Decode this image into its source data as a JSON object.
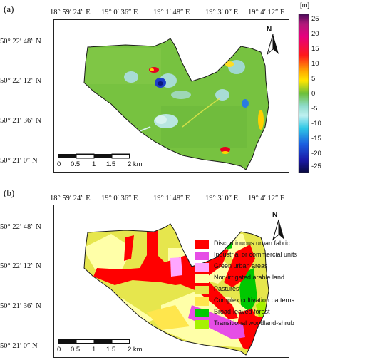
{
  "panel_a": {
    "label": "(a)",
    "top_coords": [
      "18° 59′ 24″ E",
      "19° 0′ 36″ E",
      "19° 1′ 48″ E",
      "19° 3′ 0″ E",
      "19° 4′ 12″ E"
    ],
    "left_coords": [
      "50° 22′ 48″ N",
      "50° 22′ 12″ N",
      "50° 21′ 36″ N",
      "50° 21′ 0″ N"
    ],
    "colorbar": {
      "unit": "[m]",
      "ticks": [
        "25",
        "20",
        "15",
        "10",
        "5",
        "0",
        "-5",
        "-10",
        "-15",
        "-20",
        "-25"
      ],
      "range": [
        -27,
        27
      ]
    },
    "scalebar": {
      "labels": [
        "0",
        "0.5",
        "1",
        "1.5",
        "2 km"
      ]
    },
    "north": "N"
  },
  "panel_b": {
    "label": "(b)",
    "top_coords": [
      "18° 59′ 24″ E",
      "19° 0′ 36″ E",
      "19° 1′ 48″ E",
      "19° 3′ 0″ E",
      "19° 4′ 12″ E"
    ],
    "left_coords": [
      "50° 22′ 48″ N",
      "50° 22′ 12″ N",
      "50° 21′ 36″ N",
      "50° 21′ 0″ N"
    ],
    "scalebar": {
      "labels": [
        "0",
        "0.5",
        "1",
        "1.5",
        "2 km"
      ]
    },
    "north": "N",
    "legend": [
      {
        "label": "Discontinuous urban fabric",
        "color": "#ff0000"
      },
      {
        "label": "Industrial or commercial units",
        "color": "#e64de6"
      },
      {
        "label": "Green urban areas",
        "color": "#ffa6ff"
      },
      {
        "label": "Non-irrigated arable land",
        "color": "#ffffa8"
      },
      {
        "label": "Pastures",
        "color": "#e6e64d"
      },
      {
        "label": "Complex cultivation patterns",
        "color": "#ffe64d"
      },
      {
        "label": "Broad-leaved forest",
        "color": "#00c800"
      },
      {
        "label": "Transitional woodland-shrub",
        "color": "#a6f200"
      }
    ]
  }
}
